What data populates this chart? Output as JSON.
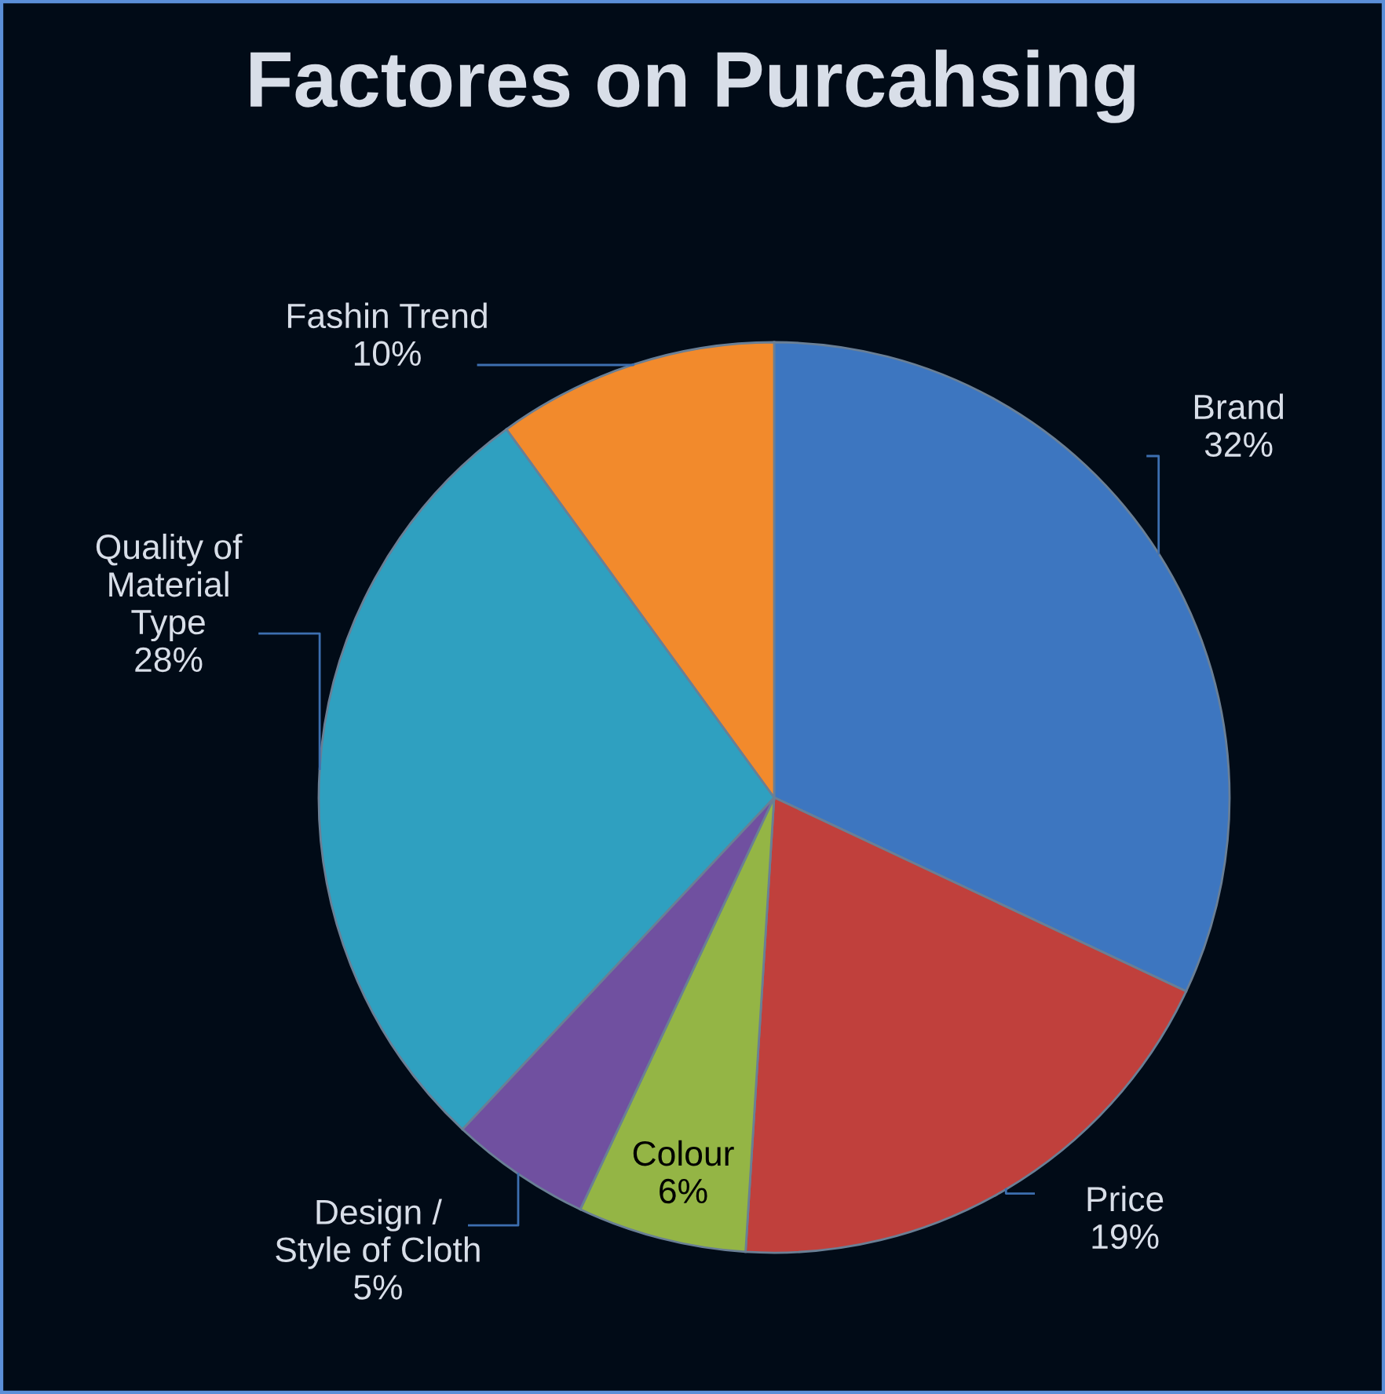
{
  "chart_data": {
    "type": "pie",
    "title": "Factores on Purcahsing",
    "categories": [
      "Brand",
      "Price",
      "Colour",
      "Design / Style of Cloth",
      "Quality of Material Type",
      "Fashin Trend"
    ],
    "values": [
      32,
      19,
      6,
      5,
      28,
      10
    ],
    "colors": [
      "#3d76c0",
      "#c0403c",
      "#94b545",
      "#7050a0",
      "#2fa0c0",
      "#f28a2c"
    ],
    "value_labels": [
      "32%",
      "19%",
      "6%",
      "5%",
      "28%",
      "10%"
    ],
    "legend": false
  }
}
